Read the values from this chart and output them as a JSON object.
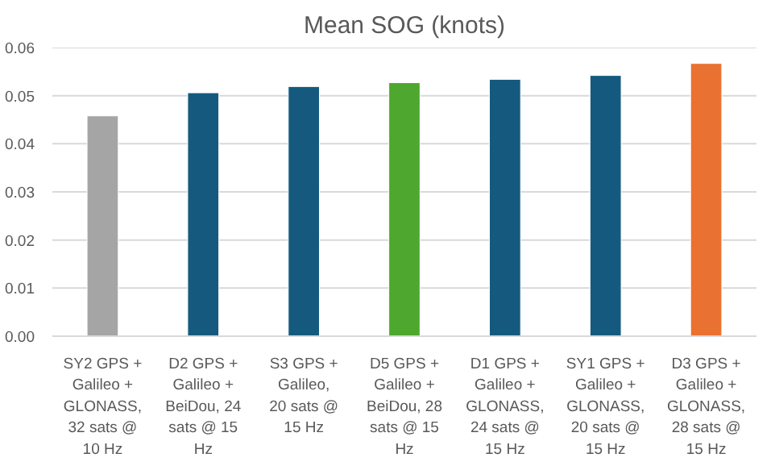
{
  "chart_data": {
    "type": "bar",
    "title": "Mean SOG (knots)",
    "categories": [
      "SY2 GPS + Galileo + GLONASS, 32 sats @ 10 Hz",
      "D2 GPS + Galileo + BeiDou, 24 sats @ 15 Hz",
      "S3 GPS + Galileo, 20 sats @ 15 Hz",
      "D5 GPS + Galileo + BeiDou, 28 sats @ 15 Hz",
      "D1 GPS + Galileo + GLONASS, 24 sats @ 15 Hz",
      "SY1 GPS + Galileo + GLONASS, 20 sats @ 15 Hz",
      "D3 GPS + Galileo + GLONASS, 28 sats @ 15 Hz"
    ],
    "values": [
      0.0458,
      0.0506,
      0.0519,
      0.0527,
      0.0534,
      0.0542,
      0.0567
    ],
    "colors": [
      "#a5a5a5",
      "#155a7e",
      "#155a7e",
      "#4ea72e",
      "#155a7e",
      "#155a7e",
      "#e97132"
    ],
    "ylim": [
      0,
      0.06
    ],
    "yticks": [
      {
        "value": 0,
        "label": "0.00"
      },
      {
        "value": 0.01,
        "label": "0.01"
      },
      {
        "value": 0.02,
        "label": "0.02"
      },
      {
        "value": 0.03,
        "label": "0.03"
      },
      {
        "value": 0.04,
        "label": "0.04"
      },
      {
        "value": 0.05,
        "label": "0.05"
      },
      {
        "value": 0.06,
        "label": "0.06"
      }
    ],
    "grid": "y"
  }
}
